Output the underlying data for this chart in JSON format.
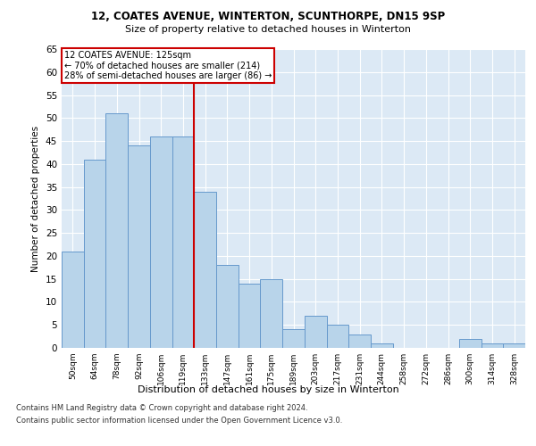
{
  "title1": "12, COATES AVENUE, WINTERTON, SCUNTHORPE, DN15 9SP",
  "title2": "Size of property relative to detached houses in Winterton",
  "xlabel": "Distribution of detached houses by size in Winterton",
  "ylabel": "Number of detached properties",
  "categories": [
    "50sqm",
    "64sqm",
    "78sqm",
    "92sqm",
    "106sqm",
    "119sqm",
    "133sqm",
    "147sqm",
    "161sqm",
    "175sqm",
    "189sqm",
    "203sqm",
    "217sqm",
    "231sqm",
    "244sqm",
    "258sqm",
    "272sqm",
    "286sqm",
    "300sqm",
    "314sqm",
    "328sqm"
  ],
  "values": [
    21,
    41,
    51,
    44,
    46,
    46,
    34,
    18,
    14,
    15,
    4,
    7,
    5,
    3,
    1,
    0,
    0,
    0,
    2,
    1,
    1
  ],
  "bar_color": "#b8d4ea",
  "bar_edge_color": "#6699cc",
  "vline_x": 5.5,
  "vline_color": "#cc0000",
  "annotation_box_text": "12 COATES AVENUE: 125sqm\n← 70% of detached houses are smaller (214)\n28% of semi-detached houses are larger (86) →",
  "annotation_box_color": "#cc0000",
  "annotation_box_facecolor": "white",
  "ylim": [
    0,
    65
  ],
  "yticks": [
    0,
    5,
    10,
    15,
    20,
    25,
    30,
    35,
    40,
    45,
    50,
    55,
    60,
    65
  ],
  "footnote1": "Contains HM Land Registry data © Crown copyright and database right 2024.",
  "footnote2": "Contains public sector information licensed under the Open Government Licence v3.0.",
  "bg_color": "#dce9f5",
  "fig_bg_color": "#ffffff"
}
